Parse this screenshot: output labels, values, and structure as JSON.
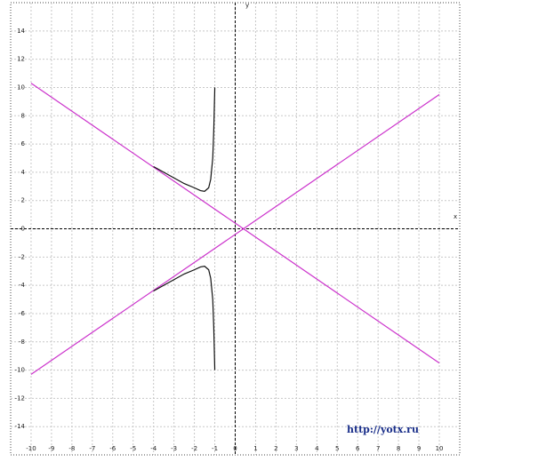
{
  "chart_data": {
    "type": "line",
    "x_label": "x",
    "y_label": "y",
    "annotation": "http://yotx.ru",
    "xlim": [
      -11,
      11
    ],
    "ylim": [
      -16,
      16
    ],
    "xticks": [
      -10,
      -9,
      -8,
      -7,
      -6,
      -5,
      -4,
      -3,
      -2,
      -1,
      0,
      1,
      2,
      3,
      4,
      5,
      6,
      7,
      8,
      9,
      10
    ],
    "yticks": [
      -14,
      -12,
      -10,
      -8,
      -6,
      -4,
      -2,
      0,
      2,
      4,
      6,
      8,
      10,
      12,
      14
    ],
    "grid": true,
    "series": [
      {
        "color": "#cc33cc",
        "x": [
          -10,
          10
        ],
        "values": [
          10.3,
          -9.5
        ]
      },
      {
        "color": "#cc33cc",
        "x": [
          -10,
          10
        ],
        "values": [
          -10.3,
          9.5
        ]
      },
      {
        "color": "#111111",
        "x": [
          -4,
          -3,
          -2.5,
          -2,
          -1.7,
          -1.5,
          -1.3,
          -1.2,
          -1.1,
          -1.05,
          -1
        ],
        "values": [
          4.4,
          3.6,
          3.2,
          2.9,
          2.7,
          2.65,
          2.9,
          3.5,
          5,
          7,
          10
        ]
      },
      {
        "color": "#111111",
        "x": [
          -4,
          -3,
          -2.5,
          -2,
          -1.7,
          -1.5,
          -1.3,
          -1.2,
          -1.1,
          -1.05,
          -1
        ],
        "values": [
          -4.4,
          -3.6,
          -3.2,
          -2.9,
          -2.7,
          -2.65,
          -2.9,
          -3.5,
          -5,
          -7,
          -10
        ]
      }
    ]
  }
}
